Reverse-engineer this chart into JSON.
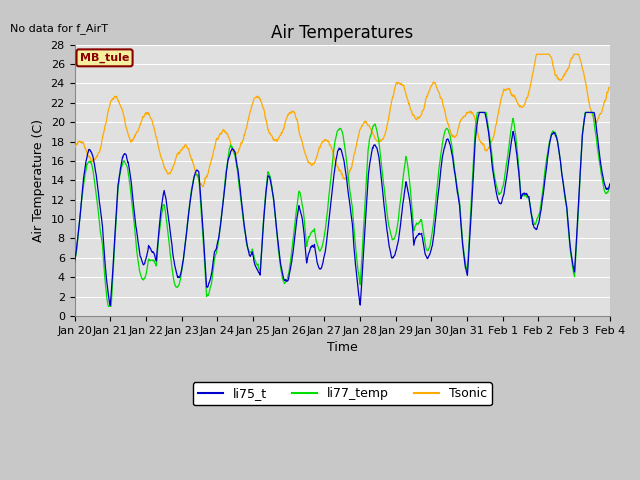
{
  "title": "Air Temperatures",
  "ylabel": "Air Temperature (C)",
  "xlabel": "Time",
  "no_data_text": "No data for f_AirT",
  "station_label": "MB_tule",
  "ylim": [
    0,
    28
  ],
  "yticks": [
    0,
    2,
    4,
    6,
    8,
    10,
    12,
    14,
    16,
    18,
    20,
    22,
    24,
    26,
    28
  ],
  "xtick_labels": [
    "Jan 20",
    "Jan 21",
    "Jan 22",
    "Jan 23",
    "Jan 24",
    "Jan 25",
    "Jan 26",
    "Jan 27",
    "Jan 28",
    "Jan 29",
    "Jan 30",
    "Jan 31",
    "Feb 1",
    "Feb 2",
    "Feb 3",
    "Feb 4"
  ],
  "line_colors": {
    "li75_t": "#0000cc",
    "li77_temp": "#00dd00",
    "Tsonic": "#ffaa00"
  },
  "fig_facecolor": "#c8c8c8",
  "plot_bg_color": "#e0e0e0",
  "grid_color": "#ffffff",
  "title_fontsize": 12,
  "label_fontsize": 9,
  "tick_fontsize": 8
}
